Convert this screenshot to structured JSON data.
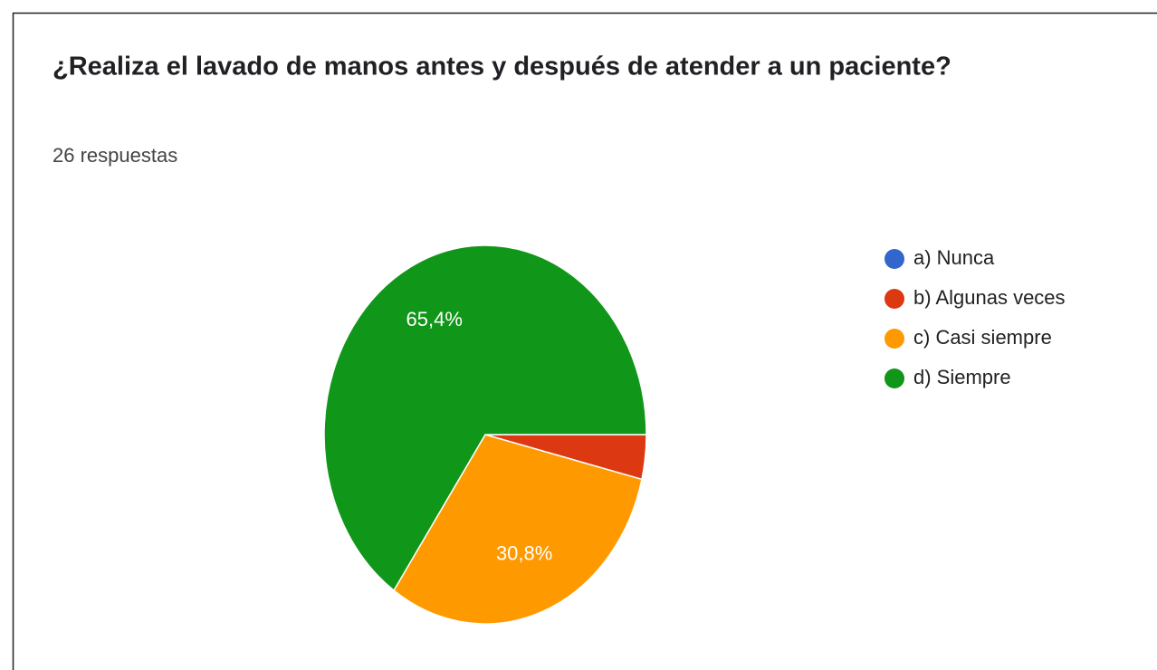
{
  "chart_data": {
    "type": "pie",
    "title": "¿Realiza el lavado de manos antes y después de atender a un paciente?",
    "subtitle": "26 respuestas",
    "categories": [
      "a) Nunca",
      "b) Algunas veces",
      "c) Casi siempre",
      "d) Siempre"
    ],
    "values": [
      0,
      3.8,
      30.8,
      65.4
    ],
    "value_labels": [
      null,
      null,
      "30,8%",
      "65,4%"
    ],
    "colors": [
      "#3366cc",
      "#dc3912",
      "#ff9900",
      "#109618"
    ],
    "legend": "right"
  }
}
